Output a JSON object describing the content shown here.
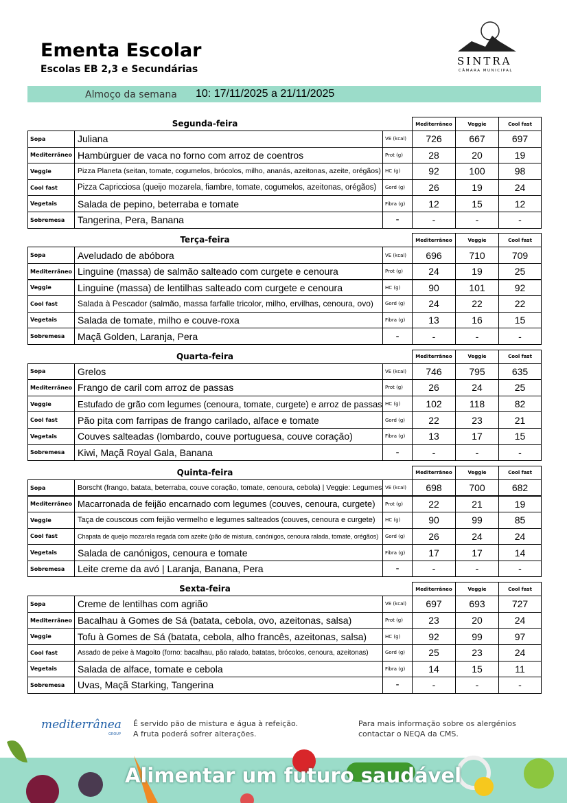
{
  "header": {
    "title": "Ementa Escolar",
    "subtitle": "Escolas EB 2,3 e Secundárias",
    "week_label": "Almoço da semana",
    "week": "10: 17/11/2025 a 21/11/2025",
    "logo": "SINTRA",
    "logo_sub": "CÂMARA MUNICIPAL"
  },
  "columns": [
    "Mediterrâneo",
    "Veggie",
    "Cool fast"
  ],
  "days": [
    {
      "name": "Segunda-feira",
      "rows": [
        {
          "category": "Sopa",
          "dish": "Juliana",
          "unit": "VE (kcal)",
          "values": [
            726,
            667,
            697
          ]
        },
        {
          "category": "Mediterrâneo",
          "dish": "Hambúrguer de vaca no forno com arroz de coentros",
          "unit": "Prot (g)",
          "values": [
            28,
            20,
            19
          ]
        },
        {
          "category": "Veggie",
          "dish": "Pizza Planeta (seitan, tomate, cogumelos, brócolos, milho, ananás, azeitonas, azeite, orégãos)",
          "unit": "HC (g)",
          "values": [
            92,
            100,
            98
          ]
        },
        {
          "category": "Cool fast",
          "dish": "Pizza Capricciosa (queijo mozarela, fiambre, tomate, cogumelos, azeitonas, orégãos)",
          "unit": "Gord (g)",
          "values": [
            26,
            19,
            24
          ]
        },
        {
          "category": "Vegetais",
          "dish": "Salada de pepino, beterraba e tomate",
          "unit": "Fibra (g)",
          "values": [
            12,
            15,
            12
          ]
        },
        {
          "category": "Sobremesa",
          "dish": "Tangerina, Pera, Banana",
          "unit": "-",
          "values": [
            "-",
            "-",
            "-"
          ]
        }
      ]
    },
    {
      "name": "Terça-feira",
      "rows": [
        {
          "category": "Sopa",
          "dish": "Aveludado de abóbora",
          "unit": "VE (kcal)",
          "values": [
            696,
            710,
            709
          ]
        },
        {
          "category": "Mediterrâneo",
          "dish": "Linguine (massa) de salmão salteado com curgete e cenoura",
          "unit": "Prot (g)",
          "values": [
            24,
            19,
            25
          ]
        },
        {
          "category": "Veggie",
          "dish": "Linguine (massa) de lentilhas salteado com curgete e cenoura",
          "unit": "HC (g)",
          "values": [
            90,
            101,
            92
          ]
        },
        {
          "category": "Cool fast",
          "dish": "Salada à Pescador (salmão, massa farfalle tricolor, milho, ervilhas, cenoura, ovo)",
          "unit": "Gord (g)",
          "values": [
            24,
            22,
            22
          ]
        },
        {
          "category": "Vegetais",
          "dish": "Salada de tomate, milho e couve-roxa",
          "unit": "Fibra (g)",
          "values": [
            13,
            16,
            15
          ]
        },
        {
          "category": "Sobremesa",
          "dish": "Maçã Golden, Laranja, Pera",
          "unit": "-",
          "values": [
            "-",
            "-",
            "-"
          ]
        }
      ]
    },
    {
      "name": "Quarta-feira",
      "rows": [
        {
          "category": "Sopa",
          "dish": "Grelos",
          "unit": "VE (kcal)",
          "values": [
            746,
            795,
            635
          ]
        },
        {
          "category": "Mediterrâneo",
          "dish": "Frango de caril com arroz de passas",
          "unit": "Prot (g)",
          "values": [
            26,
            24,
            25
          ]
        },
        {
          "category": "Veggie",
          "dish": "Estufado de grão com legumes (cenoura, tomate, curgete) e arroz de passas",
          "unit": "HC (g)",
          "values": [
            102,
            118,
            82
          ]
        },
        {
          "category": "Cool fast",
          "dish": "Pão pita com farripas de frango carilado, alface e tomate",
          "unit": "Gord (g)",
          "values": [
            22,
            23,
            21
          ]
        },
        {
          "category": "Vegetais",
          "dish": "Couves salteadas (lombardo, couve portuguesa, couve coração)",
          "unit": "Fibra (g)",
          "values": [
            13,
            17,
            15
          ]
        },
        {
          "category": "Sobremesa",
          "dish": "Kiwi, Maçã Royal Gala, Banana",
          "unit": "-",
          "values": [
            "-",
            "-",
            "-"
          ]
        }
      ]
    },
    {
      "name": "Quinta-feira",
      "rows": [
        {
          "category": "Sopa",
          "dish": "Borscht (frango, batata, beterraba, couve coração, tomate, cenoura, cebola) | Veggie: Legumes",
          "unit": "VE (kcal)",
          "values": [
            698,
            700,
            682
          ]
        },
        {
          "category": "Mediterrâneo",
          "dish": "Macarronada de feijão encarnado com legumes (couves, cenoura, curgete)",
          "unit": "Prot (g)",
          "values": [
            22,
            21,
            19
          ]
        },
        {
          "category": "Veggie",
          "dish": "Taça de couscous com feijão vermelho e legumes salteados (couves, cenoura e curgete)",
          "unit": "HC (g)",
          "values": [
            90,
            99,
            85
          ]
        },
        {
          "category": "Cool fast",
          "dish": "Chapata de queijo mozarela regada com azeite (pão de mistura, canónigos, cenoura ralada, tomate, orégãos)",
          "unit": "Gord (g)",
          "values": [
            26,
            24,
            24
          ]
        },
        {
          "category": "Vegetais",
          "dish": "Salada de canónigos, cenoura e tomate",
          "unit": "Fibra (g)",
          "values": [
            17,
            17,
            14
          ]
        },
        {
          "category": "Sobremesa",
          "dish": "Leite creme da avó | Laranja, Banana, Pera",
          "unit": "-",
          "values": [
            "-",
            "-",
            "-"
          ]
        }
      ]
    },
    {
      "name": "Sexta-feira",
      "rows": [
        {
          "category": "Sopa",
          "dish": "Creme de lentilhas com agrião",
          "unit": "VE (kcal)",
          "values": [
            697,
            693,
            727
          ]
        },
        {
          "category": "Mediterrâneo",
          "dish": "Bacalhau à Gomes de Sá (batata, cebola, ovo, azeitonas, salsa)",
          "unit": "Prot (g)",
          "values": [
            23,
            20,
            24
          ]
        },
        {
          "category": "Veggie",
          "dish": "Tofu à Gomes de Sá (batata, cebola, alho francês, azeitonas, salsa)",
          "unit": "HC (g)",
          "values": [
            92,
            99,
            97
          ]
        },
        {
          "category": "Cool fast",
          "dish": "Assado de peixe à Magoito (forno: bacalhau, pão ralado, batatas, brócolos, cenoura, azeitonas)",
          "unit": "Gord (g)",
          "values": [
            25,
            23,
            24
          ]
        },
        {
          "category": "Vegetais",
          "dish": "Salada de alface, tomate e cebola",
          "unit": "Fibra (g)",
          "values": [
            14,
            15,
            11
          ]
        },
        {
          "category": "Sobremesa",
          "dish": "Uvas, Maçã Starking, Tangerina",
          "unit": "-",
          "values": [
            "-",
            "-",
            "-"
          ]
        }
      ]
    }
  ],
  "footer": {
    "brand": "mediterrânea",
    "brand_sub": "GROUP",
    "notes": [
      "É servido pão de mistura e água à refeição.",
      "A fruta poderá sofrer alterações."
    ],
    "info": [
      "Para mais informação sobre os alergénios",
      "contactar o NEQA da CMS."
    ],
    "slogan": "Alimentar um futuro saudável"
  }
}
